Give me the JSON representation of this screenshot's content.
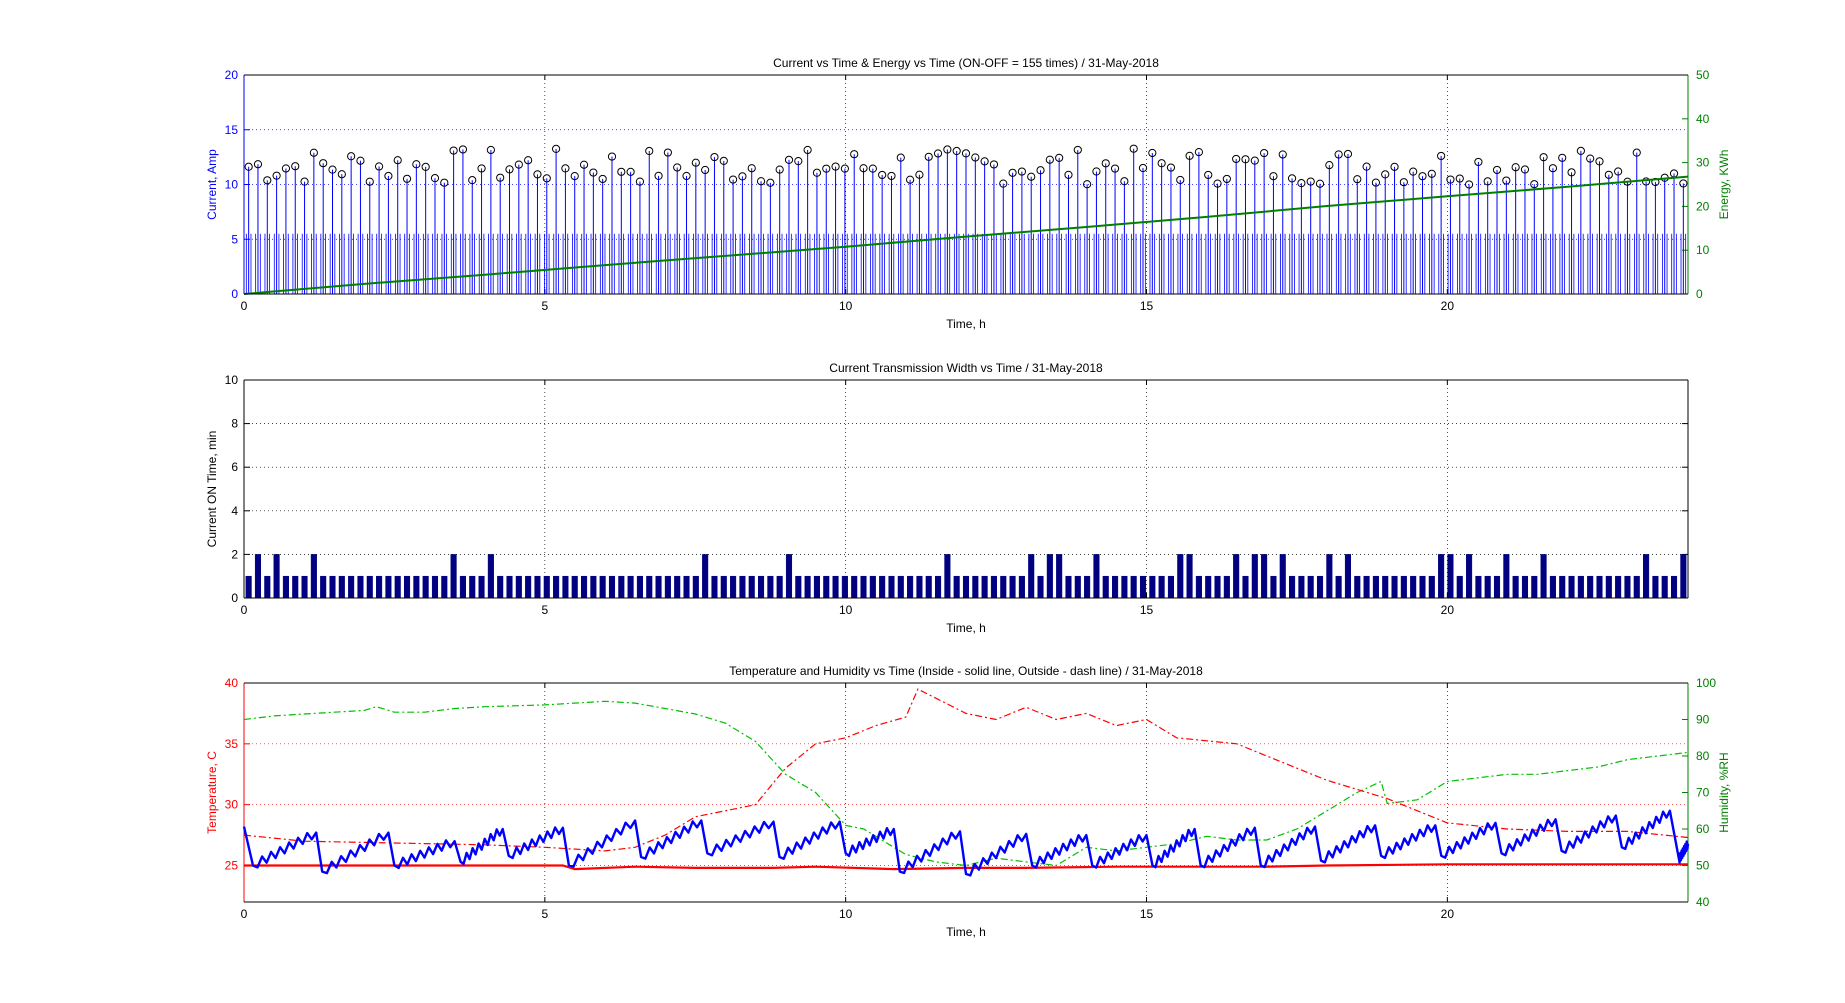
{
  "chart_data": [
    {
      "type": "line",
      "title": "Current vs Time & Energy vs Time (ON-OFF = 155 times) / 31-May-2018",
      "xlabel": "Time, h",
      "xlim": [
        0,
        24
      ],
      "xticks": [
        "0",
        "5",
        "10",
        "15",
        "20"
      ],
      "grid": true,
      "left_axis": {
        "label": "Current, Amp",
        "ylim": [
          0,
          20
        ],
        "ticks": [
          "0",
          "5",
          "10",
          "15",
          "20"
        ],
        "color": "#0000ff"
      },
      "right_axis": {
        "label": "Energy, KWh",
        "ylim": [
          0,
          50
        ],
        "ticks": [
          "0",
          "10",
          "20",
          "30",
          "40",
          "50"
        ],
        "color": "#008000"
      },
      "series": [
        {
          "axis": "left",
          "style": "stem",
          "color": "#0000ff",
          "marker": "circle",
          "cycles": 155,
          "on_current_range": [
            10,
            13.3
          ],
          "running_current": 5.5
        },
        {
          "axis": "right",
          "style": "line",
          "color": "#008000",
          "x": [
            0,
            2,
            4,
            6,
            8,
            10,
            12,
            14,
            16,
            18,
            20,
            22,
            24
          ],
          "y": [
            0,
            2.3,
            4.4,
            6.6,
            8.7,
            10.8,
            13.1,
            15.3,
            17.6,
            20.1,
            22.3,
            24.5,
            26.8
          ]
        }
      ]
    },
    {
      "type": "bar",
      "title": "Current Transmission Width vs Time / 31-May-2018",
      "xlabel": "Time, h",
      "ylabel": "Current ON Time, min",
      "xlim": [
        0,
        24
      ],
      "ylim": [
        0,
        10
      ],
      "xticks": [
        "0",
        "5",
        "10",
        "15",
        "20"
      ],
      "yticks": [
        "0",
        "2",
        "4",
        "6",
        "8",
        "10"
      ],
      "grid": true,
      "color": "#000080",
      "bar_count": 155,
      "bar_values_min": [
        1,
        2,
        1,
        2,
        1,
        1,
        1,
        2,
        1,
        1,
        1,
        1,
        1,
        1,
        1,
        1,
        1,
        1,
        1,
        1,
        1,
        1,
        2,
        1,
        1,
        1,
        2,
        1,
        1,
        1,
        1,
        1,
        1,
        1,
        1,
        1,
        1,
        1,
        1,
        1,
        1,
        1,
        1,
        1,
        1,
        1,
        1,
        1,
        1,
        2,
        1,
        1,
        1,
        1,
        1,
        1,
        1,
        1,
        2,
        1,
        1,
        1,
        1,
        1,
        1,
        1,
        1,
        1,
        1,
        1,
        1,
        1,
        1,
        1,
        1,
        2,
        1,
        1,
        1,
        1,
        1,
        1,
        1,
        1,
        2,
        1,
        2,
        2,
        1,
        1,
        1,
        2,
        1,
        1,
        1,
        1,
        1,
        1,
        1,
        1,
        2,
        2,
        1,
        1,
        1,
        1,
        2,
        1,
        2,
        2,
        1,
        2,
        1,
        1,
        1,
        1,
        2,
        1,
        2,
        1,
        1,
        1,
        1,
        1,
        1,
        1,
        1,
        1,
        2,
        2,
        1,
        2,
        1,
        1,
        1,
        2,
        1,
        1,
        1,
        2,
        1,
        1,
        1,
        1,
        1,
        1,
        1,
        1,
        1,
        1,
        2,
        1,
        1,
        1,
        2
      ]
    },
    {
      "type": "line",
      "title": "Temperature and Humidity vs Time (Inside - solid line, Outside - dash line) / 31-May-2018",
      "xlabel": "Time, h",
      "xlim": [
        0,
        24
      ],
      "xticks": [
        "0",
        "5",
        "10",
        "15",
        "20"
      ],
      "grid": true,
      "left_axis": {
        "label": "Temperature, C",
        "ylim": [
          22,
          40
        ],
        "ticks": [
          "25",
          "30",
          "35",
          "40"
        ],
        "color": "#ff0000"
      },
      "right_axis": {
        "label": "Humidity, %RH",
        "ylim": [
          40,
          100
        ],
        "ticks": [
          "40",
          "50",
          "60",
          "70",
          "80",
          "90",
          "100"
        ],
        "color": "#008000"
      },
      "series": [
        {
          "axis": "left",
          "style": "solid",
          "color": "#ff0000",
          "x": [
            0,
            5.3,
            5.5,
            6.5,
            7.5,
            8.8,
            9.5,
            10.8,
            12,
            13,
            14.5,
            16,
            17,
            18,
            20,
            22,
            24
          ],
          "y": [
            25.0,
            25.0,
            24.7,
            24.9,
            24.8,
            24.8,
            24.9,
            24.7,
            24.8,
            24.8,
            24.9,
            24.9,
            24.9,
            25.0,
            25.1,
            25.1,
            25.1
          ]
        },
        {
          "axis": "left",
          "style": "dashdot",
          "color": "#ff0000",
          "x": [
            0,
            1,
            2,
            3,
            4,
            5,
            6,
            6.5,
            7,
            7.5,
            8.5,
            9,
            9.5,
            10,
            10.5,
            11,
            11.2,
            12,
            12.5,
            13,
            13.5,
            14,
            14.5,
            15,
            15.5,
            16.5,
            17,
            18,
            19,
            20,
            21,
            22,
            23,
            24
          ],
          "y": [
            27.5,
            27.0,
            26.9,
            26.8,
            26.7,
            26.5,
            26.2,
            26.5,
            27.5,
            29.0,
            30.0,
            33.0,
            35.0,
            35.5,
            36.5,
            37.2,
            39.5,
            37.5,
            37.0,
            38.0,
            37.0,
            37.5,
            36.5,
            37.0,
            35.5,
            35.0,
            34.0,
            32.0,
            30.5,
            28.5,
            28.0,
            27.8,
            27.8,
            27.3
          ]
        },
        {
          "axis": "left",
          "style": "solid",
          "color": "#0000ff",
          "pattern": "sawtooth",
          "segments": [
            [
              0,
              28.2
            ],
            [
              0.15,
              25
            ],
            [
              1.2,
              27.7
            ],
            [
              1.3,
              24.5
            ],
            [
              2.4,
              27.7
            ],
            [
              2.5,
              25
            ],
            [
              3.5,
              27.0
            ],
            [
              3.6,
              25.3
            ],
            [
              4.3,
              28.0
            ],
            [
              4.4,
              25.8
            ],
            [
              5.3,
              28.1
            ],
            [
              5.4,
              25
            ],
            [
              6.5,
              28.7
            ],
            [
              6.6,
              25.7
            ],
            [
              7.6,
              28.7
            ],
            [
              7.7,
              26.0
            ],
            [
              8.8,
              28.6
            ],
            [
              8.9,
              25.7
            ],
            [
              9.9,
              28.6
            ],
            [
              10,
              26.0
            ],
            [
              10.8,
              28.0
            ],
            [
              10.9,
              24.5
            ],
            [
              11.9,
              27.8
            ],
            [
              12.0,
              24.3
            ],
            [
              13.0,
              27.6
            ],
            [
              13.1,
              25.0
            ],
            [
              14.0,
              27.5
            ],
            [
              14.1,
              25.0
            ],
            [
              15.0,
              27.5
            ],
            [
              15.1,
              25.0
            ],
            [
              15.8,
              28.0
            ],
            [
              15.9,
              25.0
            ],
            [
              16.8,
              28.1
            ],
            [
              16.9,
              25.0
            ],
            [
              17.8,
              28.2
            ],
            [
              17.9,
              25.4
            ],
            [
              18.8,
              28.3
            ],
            [
              18.9,
              25.8
            ],
            [
              19.8,
              28.3
            ],
            [
              19.9,
              25.8
            ],
            [
              20.8,
              28.5
            ],
            [
              20.9,
              26.0
            ],
            [
              21.8,
              28.8
            ],
            [
              21.9,
              26.2
            ],
            [
              22.8,
              29.1
            ],
            [
              22.9,
              26.5
            ],
            [
              23.7,
              29.5
            ],
            [
              23.85,
              25.5
            ],
            [
              24,
              26.8
            ]
          ]
        },
        {
          "axis": "right",
          "style": "dashdot",
          "color": "#00c000",
          "x": [
            0,
            0.5,
            1,
            1.5,
            2,
            2.2,
            2.5,
            3,
            3.5,
            4,
            5,
            6,
            6.5,
            7,
            7.5,
            8,
            8.5,
            9,
            9.5,
            10,
            10.3,
            10.8,
            11,
            11.5,
            12,
            12.5,
            13,
            13.5,
            14,
            14.5,
            15,
            15.5,
            16,
            16.5,
            17,
            17.5,
            18,
            18.5,
            18.9,
            19,
            19.5,
            20,
            20.5,
            21,
            21.5,
            22,
            22.5,
            23,
            23.5,
            24
          ],
          "y": [
            90,
            91,
            91.5,
            92,
            92.5,
            93.5,
            92,
            92,
            93,
            93.5,
            94,
            95,
            94.5,
            93,
            91.5,
            89,
            84,
            75,
            70,
            61,
            60,
            55,
            53,
            51,
            50,
            52,
            51,
            50,
            55,
            54,
            55,
            56,
            58,
            57,
            57,
            60,
            65,
            70,
            73,
            67,
            68,
            73,
            74,
            75,
            75,
            76,
            77,
            79,
            80,
            81
          ]
        }
      ]
    }
  ]
}
